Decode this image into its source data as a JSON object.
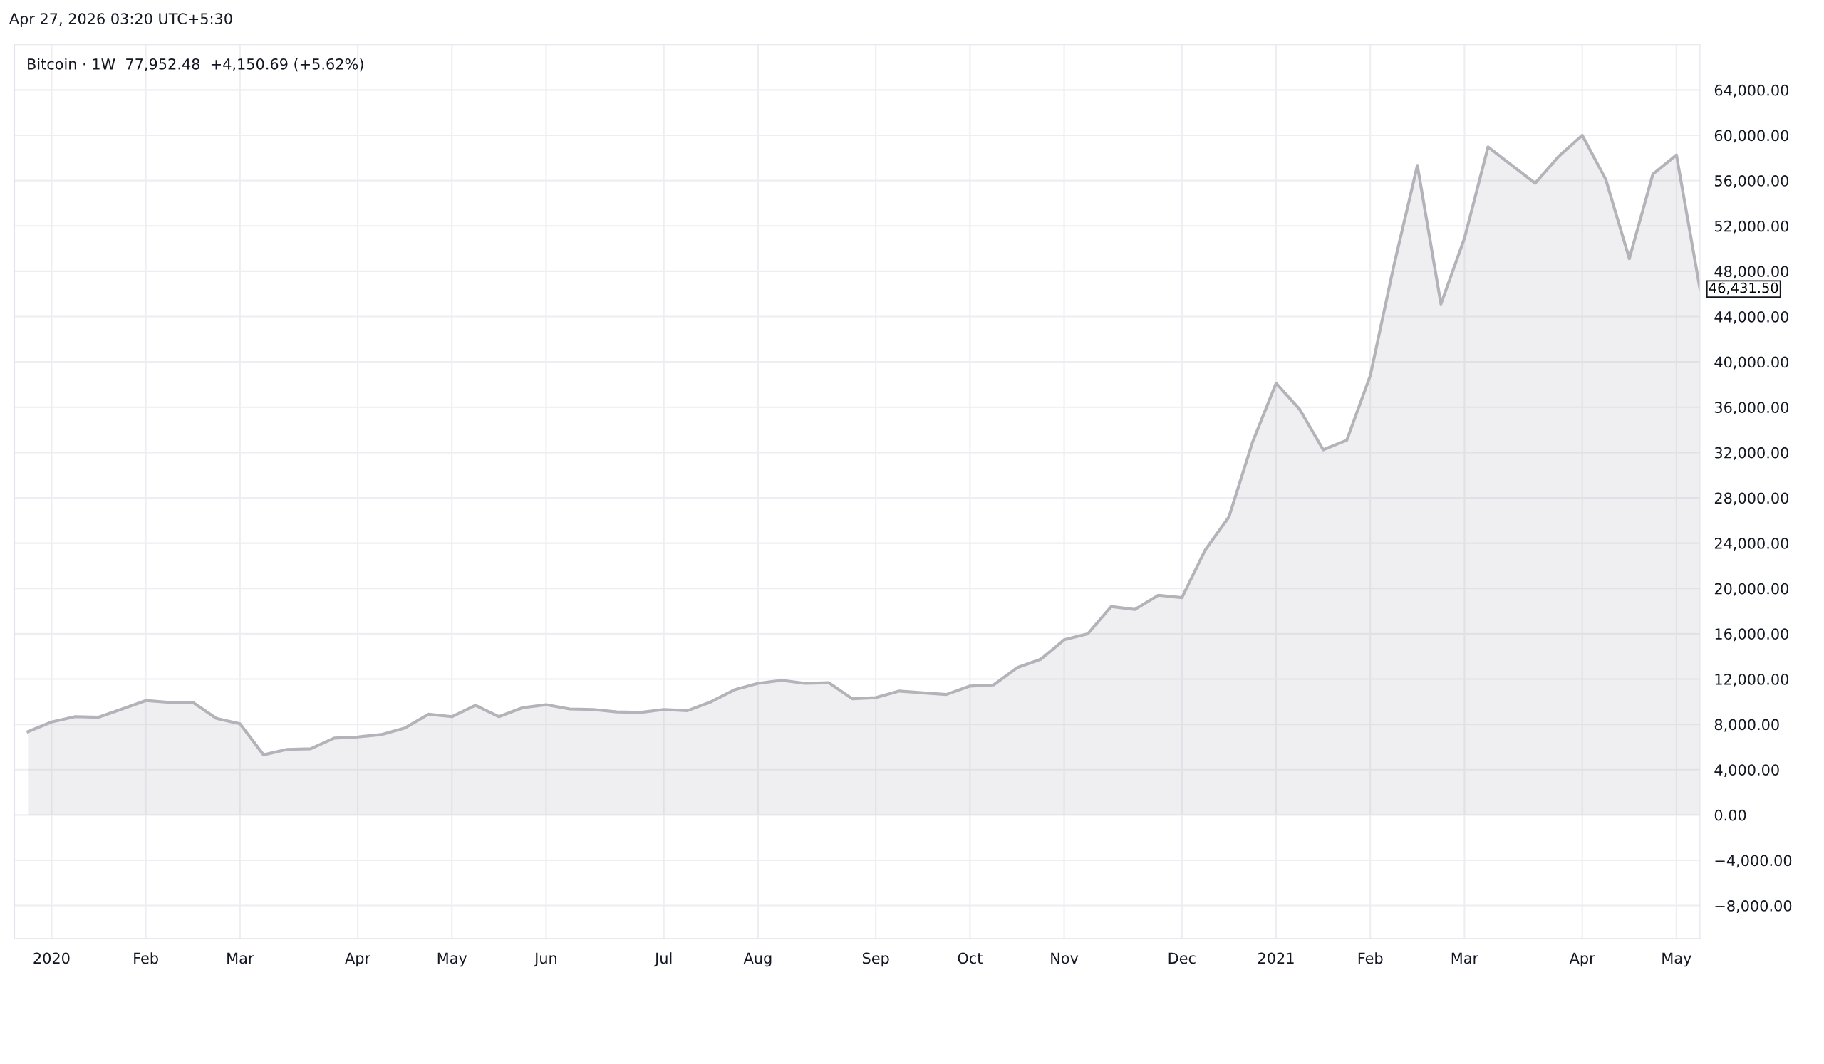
{
  "chart_data": {
    "type": "area",
    "title": "Bitcoin · 1W  77,952.48  +4,150.69 (+5.62%)",
    "annotations": [
      "Apr 27, 2026 03:20 UTC+5:30",
      {
        "text": "46,431.50",
        "x": "2021-05-10",
        "y": 46431.5
      }
    ],
    "x": [
      "2019-12-30",
      "2020-01-06",
      "2020-01-13",
      "2020-01-20",
      "2020-01-27",
      "2020-02-03",
      "2020-02-10",
      "2020-02-17",
      "2020-02-24",
      "2020-03-02",
      "2020-03-09",
      "2020-03-16",
      "2020-03-23",
      "2020-03-30",
      "2020-04-06",
      "2020-04-13",
      "2020-04-20",
      "2020-04-27",
      "2020-05-04",
      "2020-05-11",
      "2020-05-18",
      "2020-05-25",
      "2020-06-01",
      "2020-06-08",
      "2020-06-15",
      "2020-06-22",
      "2020-06-29",
      "2020-07-06",
      "2020-07-13",
      "2020-07-20",
      "2020-07-27",
      "2020-08-03",
      "2020-08-10",
      "2020-08-17",
      "2020-08-24",
      "2020-08-31",
      "2020-09-07",
      "2020-09-14",
      "2020-09-21",
      "2020-09-28",
      "2020-10-05",
      "2020-10-12",
      "2020-10-19",
      "2020-10-26",
      "2020-11-02",
      "2020-11-09",
      "2020-11-16",
      "2020-11-23",
      "2020-11-30",
      "2020-12-07",
      "2020-12-14",
      "2020-12-21",
      "2020-12-28",
      "2021-01-04",
      "2021-01-11",
      "2021-01-18",
      "2021-01-25",
      "2021-02-01",
      "2021-02-08",
      "2021-02-15",
      "2021-02-22",
      "2021-03-01",
      "2021-03-08",
      "2021-03-15",
      "2021-03-22",
      "2021-03-29",
      "2021-04-05",
      "2021-04-12",
      "2021-04-19",
      "2021-04-26",
      "2021-05-03",
      "2021-05-10"
    ],
    "series": [
      {
        "color": "#b5b3ba",
        "values": [
          7360,
          8210,
          8680,
          8630,
          9360,
          10100,
          9940,
          9940,
          8520,
          8050,
          5310,
          5790,
          5840,
          6790,
          6890,
          7100,
          7680,
          8890,
          8680,
          9680,
          8680,
          9470,
          9730,
          9360,
          9310,
          9100,
          9050,
          9310,
          9210,
          9990,
          11050,
          11620,
          11890,
          11620,
          11680,
          10260,
          10360,
          10940,
          10780,
          10640,
          11380,
          11480,
          13000,
          13740,
          15470,
          15990,
          18400,
          18140,
          19400,
          19190,
          23430,
          26320,
          32920,
          38110,
          35810,
          32240,
          33080,
          38790,
          48490,
          57340,
          45110,
          50910,
          58970,
          57370,
          55770,
          58140,
          60000,
          56110,
          49110,
          56570,
          58260,
          46431.5
        ]
      }
    ],
    "xlim": [
      "2019-12-26",
      "2021-05-10"
    ],
    "xticks": [
      {
        "value": "2020-01-06",
        "label": "2020"
      },
      {
        "value": "2020-02-03",
        "label": "Feb"
      },
      {
        "value": "2020-03-02",
        "label": "Mar"
      },
      {
        "value": "2020-04-06",
        "label": "Apr"
      },
      {
        "value": "2020-05-04",
        "label": "May"
      },
      {
        "value": "2020-06-01",
        "label": "Jun"
      },
      {
        "value": "2020-07-06",
        "label": "Jul"
      },
      {
        "value": "2020-08-03",
        "label": "Aug"
      },
      {
        "value": "2020-09-07",
        "label": "Sep"
      },
      {
        "value": "2020-10-05",
        "label": "Oct"
      },
      {
        "value": "2020-11-02",
        "label": "Nov"
      },
      {
        "value": "2020-12-07",
        "label": "Dec"
      },
      {
        "value": "2021-01-04",
        "label": "2021"
      },
      {
        "value": "2021-02-01",
        "label": "Feb"
      },
      {
        "value": "2021-03-01",
        "label": "Mar"
      },
      {
        "value": "2021-04-05",
        "label": "Apr"
      },
      {
        "value": "2021-05-03",
        "label": "May"
      }
    ],
    "ylim": [
      -10900,
      68000
    ],
    "yticks": [
      {
        "value": -8000,
        "label": "−8,000.00"
      },
      {
        "value": -4000,
        "label": "−4,000.00"
      },
      {
        "value": 0,
        "label": "0.00"
      },
      {
        "value": 4000,
        "label": "4,000.00"
      },
      {
        "value": 8000,
        "label": "8,000.00"
      },
      {
        "value": 12000,
        "label": "12,000.00"
      },
      {
        "value": 16000,
        "label": "16,000.00"
      },
      {
        "value": 20000,
        "label": "20,000.00"
      },
      {
        "value": 24000,
        "label": "24,000.00"
      },
      {
        "value": 28000,
        "label": "28,000.00"
      },
      {
        "value": 32000,
        "label": "32,000.00"
      },
      {
        "value": 36000,
        "label": "36,000.00"
      },
      {
        "value": 40000,
        "label": "40,000.00"
      },
      {
        "value": 44000,
        "label": "44,000.00"
      },
      {
        "value": 48000,
        "label": "48,000.00"
      },
      {
        "value": 52000,
        "label": "52,000.00"
      },
      {
        "value": 56000,
        "label": "56,000.00"
      },
      {
        "value": 60000,
        "label": "60,000.00"
      },
      {
        "value": 64000,
        "label": "64,000.00"
      }
    ],
    "grid": true,
    "line_style": "solid"
  }
}
